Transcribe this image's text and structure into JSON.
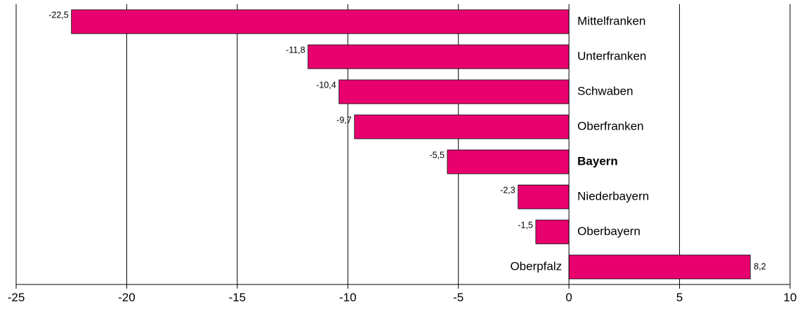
{
  "chart_data": {
    "type": "bar",
    "orientation": "horizontal",
    "categories": [
      "Mittelfranken",
      "Unterfranken",
      "Schwaben",
      "Oberfranken",
      "Bayern",
      "Niederbayern",
      "Oberbayern",
      "Oberpfalz"
    ],
    "values": [
      -22.5,
      -11.8,
      -10.4,
      -9.7,
      -5.5,
      -2.3,
      -1.5,
      8.2
    ],
    "value_labels": [
      "-22,5",
      "-11,8",
      "-10,4",
      "-9,7",
      "-5,5",
      "-2,3",
      "-1,5",
      "8,2"
    ],
    "highlighted_category": "Bayern",
    "xlim": [
      -25,
      10
    ],
    "xticks": [
      -25,
      -20,
      -15,
      -10,
      -5,
      0,
      5,
      10
    ],
    "xtick_labels": [
      "-25",
      "-20",
      "-15",
      "-10",
      "-5",
      "0",
      "5",
      "10"
    ],
    "grid": "vertical",
    "bar_color": "#E8006E",
    "title": "",
    "xlabel": "",
    "ylabel": ""
  }
}
